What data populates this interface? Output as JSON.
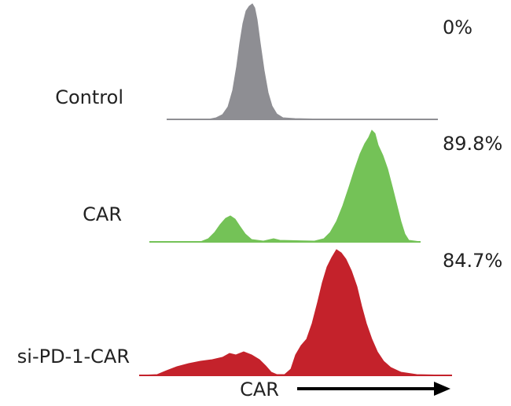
{
  "rows": [
    {
      "label": "Control",
      "percent": "0%"
    },
    {
      "label": "CAR",
      "percent": "89.8%"
    },
    {
      "label": "si-PD-1-CAR",
      "percent": "84.7%"
    }
  ],
  "x_label": "CAR"
}
